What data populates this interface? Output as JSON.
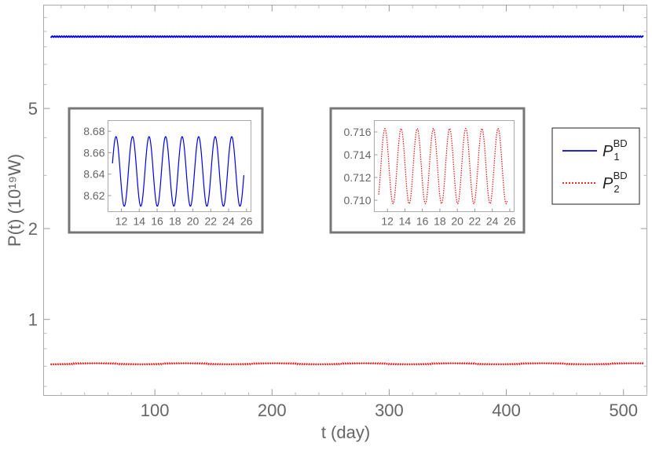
{
  "chart_data": [
    {
      "type": "line",
      "name": "main",
      "xlabel": "t (day)",
      "ylabel": "P(t) (10¹⁹W)",
      "xlim": [
        5,
        520
      ],
      "ylim": [
        0.56,
        11
      ],
      "yscale": "log",
      "xticks": [
        100,
        200,
        300,
        400,
        500
      ],
      "yticks": [
        1,
        2,
        5
      ],
      "grid": false,
      "legend": {
        "placement": "right"
      },
      "series": [
        {
          "name": "P₁ᴮᴰ",
          "label_main": "P",
          "label_sub": "1",
          "label_sup": "BD",
          "color": "#0000ee",
          "style": "solid",
          "mean": 8.65,
          "amplitude": 0.03,
          "period_days": 2
        },
        {
          "name": "P₂ᴮᴰ",
          "label_main": "P",
          "label_sub": "2",
          "label_sup": "BD",
          "color": "#ee1111",
          "style": "dotted",
          "mean": 0.713,
          "amplitude": 0.003,
          "period_days": 2
        }
      ]
    },
    {
      "type": "line",
      "name": "inset-1",
      "series_ref": "P1BD",
      "color": "#0000ee",
      "style": "solid",
      "xlim": [
        10.5,
        26.5
      ],
      "ylim": [
        8.605,
        8.69
      ],
      "xticks": [
        12,
        14,
        16,
        18,
        20,
        22,
        24,
        26
      ],
      "yticks": [
        "8.62",
        "8.64",
        "8.66",
        "8.68"
      ],
      "x_start": 11,
      "x_end": 25.7,
      "min": 8.61,
      "max": 8.675,
      "period": 1.85,
      "start_value": 8.65
    },
    {
      "type": "line",
      "name": "inset-2",
      "series_ref": "P2BD",
      "color": "#ee1111",
      "style": "dotted",
      "xlim": [
        10.5,
        26.5
      ],
      "ylim": [
        0.709,
        0.717
      ],
      "xticks": [
        12,
        14,
        16,
        18,
        20,
        22,
        24,
        26
      ],
      "yticks": [
        "0.710",
        "0.712",
        "0.714",
        "0.716"
      ],
      "x_start": 11,
      "x_end": 25.7,
      "min": 0.7097,
      "max": 0.7163,
      "period": 1.85,
      "start_value": 0.7105
    }
  ]
}
